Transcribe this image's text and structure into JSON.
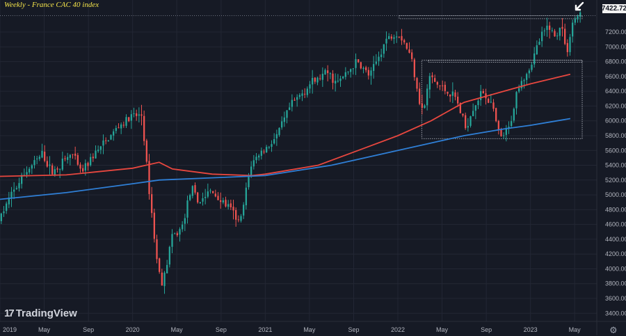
{
  "header": {
    "title": "Weekly - France CAC 40 index"
  },
  "brand": {
    "mark": "17",
    "name": "TradingView"
  },
  "last_price_label": "7422.72",
  "icons": {
    "arrow": "pointer-arrow-icon",
    "settings": "gear-icon"
  },
  "colors": {
    "background": "#161a25",
    "grid": "#232734",
    "up": "#26a69a",
    "down": "#ef5350",
    "ma_fast": "#e8473f",
    "ma_slow": "#2f7fd6",
    "boxes": "#bfc3cc",
    "axis_text": "#b2b5be"
  },
  "chart_data": {
    "type": "candlestick",
    "title": "Weekly - France CAC 40 index",
    "x_ticks": [
      "2019",
      "May",
      "Sep",
      "2020",
      "May",
      "Sep",
      "2021",
      "May",
      "Sep",
      "2022",
      "May",
      "Sep",
      "2023",
      "May"
    ],
    "y_ticks": [
      3400,
      3600,
      3800,
      4000,
      4200,
      4400,
      4600,
      4800,
      5000,
      5200,
      5400,
      5600,
      5800,
      6000,
      6200,
      6400,
      6600,
      6800,
      7000,
      7200
    ],
    "ylim": [
      3290,
      7520
    ],
    "time_range": [
      "2019-01",
      "2023-05"
    ],
    "last_price": 7422.72,
    "price_path": [
      [
        2019.0,
        4650
      ],
      [
        2019.08,
        4950
      ],
      [
        2019.2,
        5300
      ],
      [
        2019.33,
        5550
      ],
      [
        2019.4,
        5300
      ],
      [
        2019.55,
        5560
      ],
      [
        2019.62,
        5300
      ],
      [
        2019.72,
        5550
      ],
      [
        2019.8,
        5700
      ],
      [
        2019.9,
        5920
      ],
      [
        2020.0,
        6050
      ],
      [
        2020.08,
        6080
      ],
      [
        2020.12,
        5300
      ],
      [
        2020.2,
        4000
      ],
      [
        2020.24,
        3800
      ],
      [
        2020.3,
        4400
      ],
      [
        2020.38,
        4550
      ],
      [
        2020.45,
        5100
      ],
      [
        2020.5,
        4900
      ],
      [
        2020.6,
        5050
      ],
      [
        2020.75,
        4800
      ],
      [
        2020.82,
        4600
      ],
      [
        2020.9,
        5400
      ],
      [
        2020.96,
        5550
      ],
      [
        2021.0,
        5600
      ],
      [
        2021.1,
        5800
      ],
      [
        2021.2,
        6200
      ],
      [
        2021.35,
        6500
      ],
      [
        2021.48,
        6650
      ],
      [
        2021.55,
        6500
      ],
      [
        2021.7,
        6800
      ],
      [
        2021.8,
        6600
      ],
      [
        2021.92,
        7100
      ],
      [
        2022.0,
        7200
      ],
      [
        2022.05,
        7100
      ],
      [
        2022.12,
        6800
      ],
      [
        2022.17,
        6300
      ],
      [
        2022.2,
        6100
      ],
      [
        2022.25,
        6600
      ],
      [
        2022.3,
        6500
      ],
      [
        2022.38,
        6400
      ],
      [
        2022.45,
        6300
      ],
      [
        2022.52,
        5900
      ],
      [
        2022.58,
        6200
      ],
      [
        2022.65,
        6400
      ],
      [
        2022.72,
        6200
      ],
      [
        2022.78,
        5750
      ],
      [
        2022.85,
        5900
      ],
      [
        2022.92,
        6500
      ],
      [
        2023.0,
        6700
      ],
      [
        2023.08,
        7100
      ],
      [
        2023.15,
        7300
      ],
      [
        2023.2,
        7100
      ],
      [
        2023.24,
        7350
      ],
      [
        2023.28,
        6900
      ],
      [
        2023.33,
        7350
      ],
      [
        2023.37,
        7423
      ]
    ],
    "series": [
      {
        "name": "",
        "color": "#e8473f",
        "points": [
          [
            2019.0,
            5250
          ],
          [
            2019.5,
            5270
          ],
          [
            2020.0,
            5360
          ],
          [
            2020.2,
            5440
          ],
          [
            2020.3,
            5350
          ],
          [
            2020.6,
            5280
          ],
          [
            2020.9,
            5260
          ],
          [
            2021.0,
            5280
          ],
          [
            2021.4,
            5400
          ],
          [
            2021.7,
            5600
          ],
          [
            2022.0,
            5800
          ],
          [
            2022.25,
            6000
          ],
          [
            2022.5,
            6250
          ],
          [
            2022.8,
            6400
          ],
          [
            2023.0,
            6500
          ],
          [
            2023.3,
            6630
          ]
        ]
      },
      {
        "name": "",
        "color": "#2f7fd6",
        "points": [
          [
            2019.0,
            4940
          ],
          [
            2019.5,
            5030
          ],
          [
            2020.0,
            5150
          ],
          [
            2020.2,
            5200
          ],
          [
            2020.6,
            5230
          ],
          [
            2021.0,
            5260
          ],
          [
            2021.5,
            5400
          ],
          [
            2022.0,
            5600
          ],
          [
            2022.25,
            5700
          ],
          [
            2022.5,
            5800
          ],
          [
            2022.8,
            5890
          ],
          [
            2023.0,
            5940
          ],
          [
            2023.2,
            6000
          ],
          [
            2023.3,
            6030
          ]
        ]
      }
    ],
    "boxes": [
      {
        "x": [
          2022.01,
          2023.39
        ],
        "y": [
          7380,
          7422.72
        ]
      },
      {
        "x": [
          2022.23,
          2023.39
        ],
        "y": [
          6790,
          6820
        ]
      },
      {
        "x": [
          2022.18,
          2023.39
        ],
        "y": [
          5760,
          6820
        ]
      }
    ],
    "grid": true
  }
}
